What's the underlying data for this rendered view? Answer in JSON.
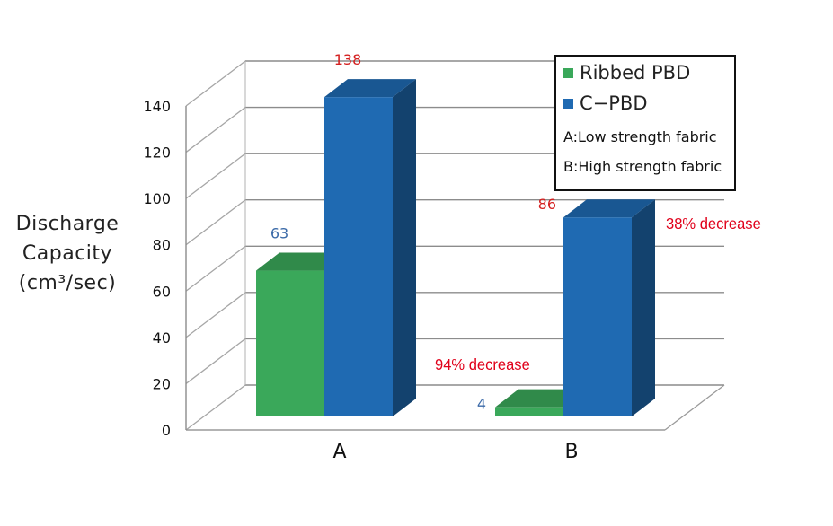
{
  "chart_data": {
    "type": "bar",
    "categories": [
      "A",
      "B"
    ],
    "series": [
      {
        "name": "Ribbed PBD",
        "color": "#3aa85a",
        "values": [
          63,
          4
        ]
      },
      {
        "name": "C−PBD",
        "color": "#1f6ab2",
        "values": [
          138,
          86
        ]
      }
    ],
    "ylabel": [
      "Discharge",
      "Capacity",
      "(cm³/sec)"
    ],
    "ylim": [
      0,
      140
    ],
    "yticks": [
      "0",
      "20",
      "40",
      "60",
      "80",
      "100",
      "120",
      "140"
    ],
    "data_labels": [
      {
        "series": 0,
        "category": 0,
        "text": "63",
        "color": "#3b6aa8"
      },
      {
        "series": 1,
        "category": 0,
        "text": "138",
        "color": "#d42020"
      },
      {
        "series": 0,
        "category": 1,
        "text": "4",
        "color": "#3b6aa8"
      },
      {
        "series": 1,
        "category": 1,
        "text": "86",
        "color": "#d42020"
      }
    ],
    "annotations": [
      {
        "text": "94% decrease",
        "color": "#e0001a"
      },
      {
        "text": "38% decrease",
        "color": "#e0001a"
      }
    ],
    "legend_notes": [
      "A:Low strength fabric",
      "B:High strength fabric"
    ],
    "legend_position": "top-right",
    "grid": true
  }
}
